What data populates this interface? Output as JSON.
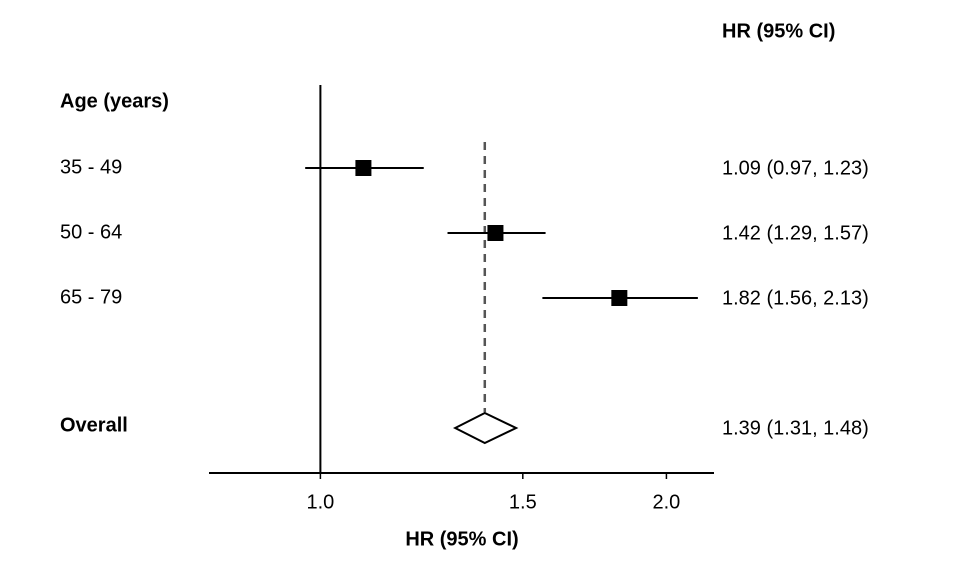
{
  "chart_data": {
    "type": "forest",
    "column_header": "HR (95% CI)",
    "xlabel": "HR (95% CI)",
    "group_label": "Age (years)",
    "categories": [
      "35 - 49",
      "50 - 64",
      "65 - 79"
    ],
    "estimates": [
      1.09,
      1.42,
      1.82
    ],
    "lower": [
      0.97,
      1.29,
      1.56
    ],
    "upper": [
      1.23,
      1.57,
      2.13
    ],
    "value_labels": [
      "1.09 (0.97, 1.23)",
      "1.42 (1.29, 1.57)",
      "1.82 (1.56, 2.13)"
    ],
    "overall": {
      "label": "Overall",
      "estimate": 1.39,
      "lower": 1.31,
      "upper": 1.48,
      "value_label": "1.39 (1.31, 1.48)"
    },
    "xlim": [
      0.8,
      2.2
    ],
    "xticks": [
      {
        "value": 1,
        "label": "1.0"
      },
      {
        "value": 1.5,
        "label": "1.5"
      },
      {
        "value": 2,
        "label": "2.0"
      }
    ],
    "xscale": "log",
    "reference_line": 1,
    "color": "#000000"
  }
}
